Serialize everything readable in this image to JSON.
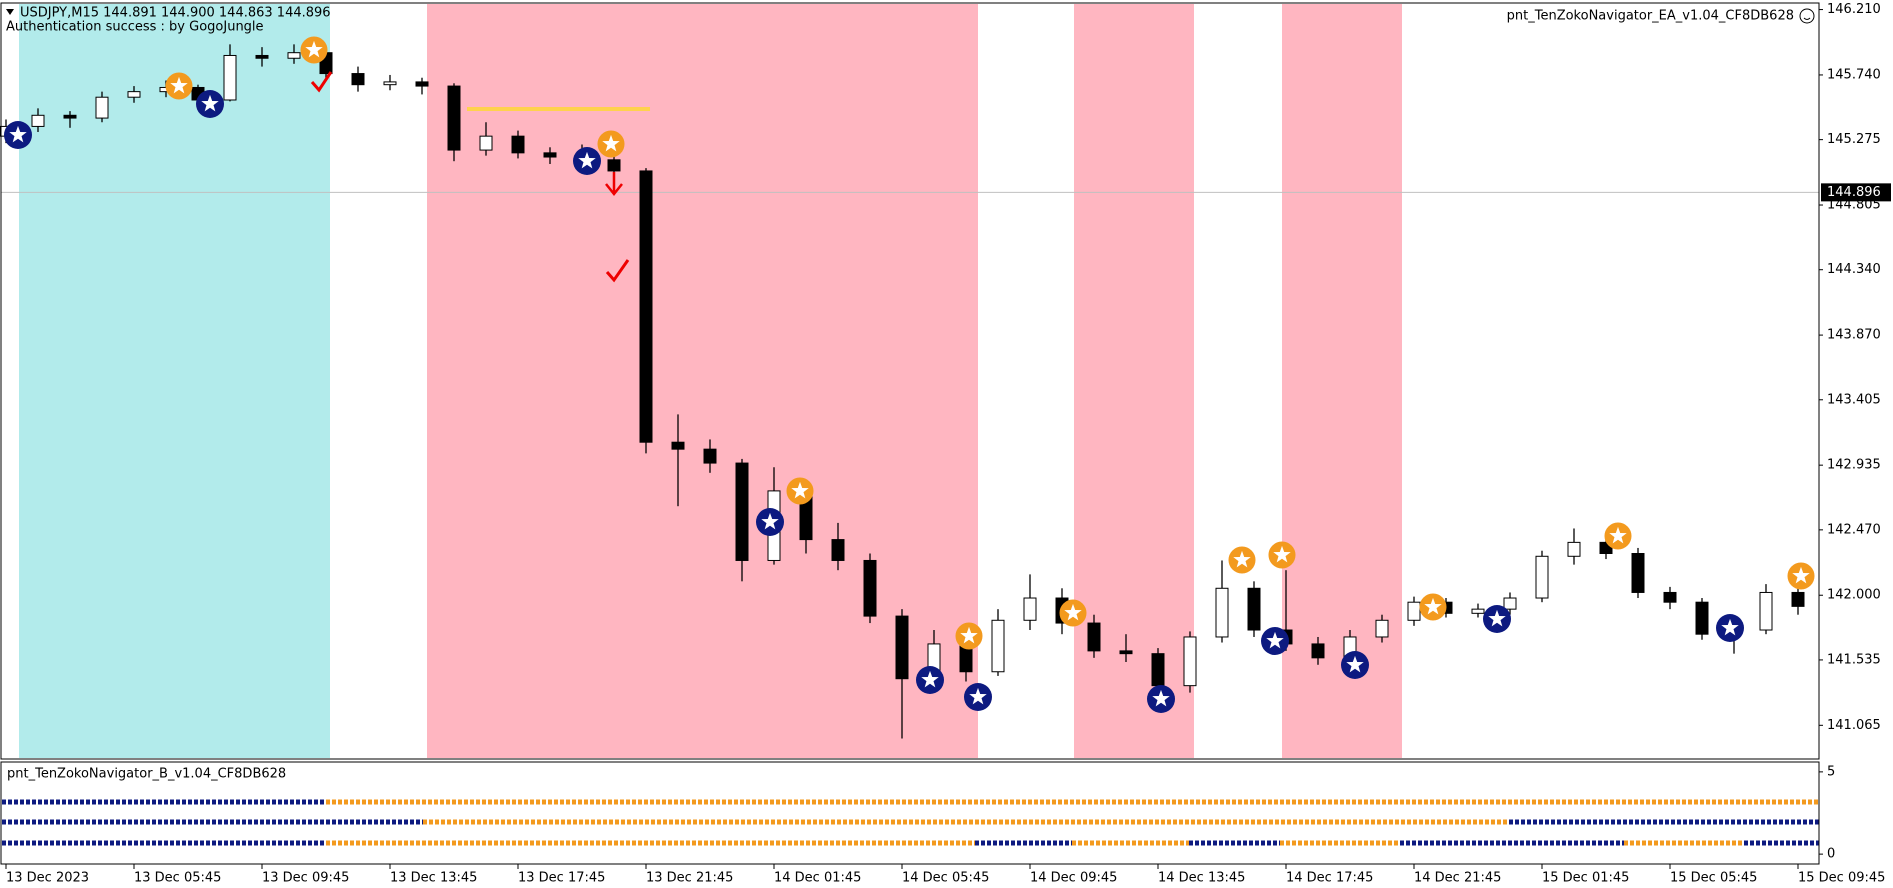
{
  "chart_data": {
    "type": "candlestick",
    "title": "USDJPY,M15  144.891 144.900 144.863 144.896",
    "subtitle": "Authentication success : by GogoJungle",
    "ea_label": "pnt_TenZokoNavigator_EA_v1.04_CF8DB628",
    "current_price": 144.896,
    "ylim": [
      140.83,
      146.25
    ],
    "yticks": [
      {
        "value": 146.21,
        "label": "146.210"
      },
      {
        "value": 145.74,
        "label": "145.740"
      },
      {
        "value": 145.275,
        "label": "145.275"
      },
      {
        "value": 144.805,
        "label": "144.805"
      },
      {
        "value": 144.34,
        "label": "144.340"
      },
      {
        "value": 143.87,
        "label": "143.870"
      },
      {
        "value": 143.405,
        "label": "143.405"
      },
      {
        "value": 142.935,
        "label": "142.935"
      },
      {
        "value": 142.47,
        "label": "142.470"
      },
      {
        "value": 142.0,
        "label": "142.000"
      },
      {
        "value": 141.535,
        "label": "141.535"
      },
      {
        "value": 141.065,
        "label": "141.065"
      }
    ],
    "x_labels": [
      "13 Dec 2023",
      "13 Dec 05:45",
      "13 Dec 09:45",
      "13 Dec 13:45",
      "13 Dec 17:45",
      "13 Dec 21:45",
      "14 Dec 01:45",
      "14 Dec 05:45",
      "14 Dec 09:45",
      "14 Dec 13:45",
      "14 Dec 17:45",
      "14 Dec 21:45",
      "15 Dec 01:45",
      "15 Dec 05:45",
      "15 Dec 09:45"
    ],
    "up_color": "#ffffff",
    "down_color": "#000000",
    "candles": [
      [
        145.3,
        145.42,
        145.25,
        145.37
      ],
      [
        145.37,
        145.5,
        145.33,
        145.45
      ],
      [
        145.45,
        145.48,
        145.36,
        145.43
      ],
      [
        145.43,
        145.62,
        145.4,
        145.58
      ],
      [
        145.58,
        145.66,
        145.54,
        145.62
      ],
      [
        145.62,
        145.7,
        145.58,
        145.65
      ],
      [
        145.65,
        145.67,
        145.52,
        145.56
      ],
      [
        145.56,
        145.96,
        145.55,
        145.88
      ],
      [
        145.88,
        145.94,
        145.8,
        145.86
      ],
      [
        145.86,
        145.96,
        145.82,
        145.9
      ],
      [
        145.9,
        145.92,
        145.7,
        145.75
      ],
      [
        145.75,
        145.8,
        145.62,
        145.67
      ],
      [
        145.67,
        145.74,
        145.63,
        145.69
      ],
      [
        145.69,
        145.72,
        145.6,
        145.66
      ],
      [
        145.66,
        145.68,
        145.12,
        145.2
      ],
      [
        145.2,
        145.4,
        145.16,
        145.3
      ],
      [
        145.3,
        145.34,
        145.14,
        145.18
      ],
      [
        145.18,
        145.22,
        145.1,
        145.15
      ],
      [
        145.15,
        145.24,
        145.07,
        145.13
      ],
      [
        145.13,
        145.27,
        145.03,
        145.05
      ],
      [
        145.05,
        145.07,
        143.02,
        143.1
      ],
      [
        143.1,
        143.3,
        142.64,
        143.05
      ],
      [
        143.05,
        143.12,
        142.88,
        142.95
      ],
      [
        142.95,
        142.98,
        142.1,
        142.25
      ],
      [
        142.25,
        142.92,
        142.22,
        142.75
      ],
      [
        142.75,
        142.8,
        142.3,
        142.4
      ],
      [
        142.4,
        142.52,
        142.18,
        142.25
      ],
      [
        142.25,
        142.3,
        141.8,
        141.85
      ],
      [
        141.85,
        141.9,
        140.97,
        141.4
      ],
      [
        141.4,
        141.75,
        141.3,
        141.65
      ],
      [
        141.65,
        141.8,
        141.38,
        141.45
      ],
      [
        141.45,
        141.9,
        141.42,
        141.82
      ],
      [
        141.82,
        142.15,
        141.75,
        141.98
      ],
      [
        141.98,
        142.05,
        141.72,
        141.8
      ],
      [
        141.8,
        141.86,
        141.55,
        141.6
      ],
      [
        141.6,
        141.72,
        141.52,
        141.58
      ],
      [
        141.58,
        141.62,
        141.28,
        141.35
      ],
      [
        141.35,
        141.74,
        141.3,
        141.7
      ],
      [
        141.7,
        142.25,
        141.66,
        142.05
      ],
      [
        142.05,
        142.1,
        141.7,
        141.75
      ],
      [
        141.75,
        142.18,
        141.6,
        141.65
      ],
      [
        141.65,
        141.7,
        141.5,
        141.55
      ],
      [
        141.55,
        141.75,
        141.48,
        141.7
      ],
      [
        141.7,
        141.86,
        141.66,
        141.82
      ],
      [
        141.82,
        141.99,
        141.78,
        141.95
      ],
      [
        141.95,
        141.98,
        141.84,
        141.87
      ],
      [
        141.87,
        141.94,
        141.84,
        141.9
      ],
      [
        141.9,
        142.02,
        141.86,
        141.98
      ],
      [
        141.98,
        142.32,
        141.95,
        142.28
      ],
      [
        142.28,
        142.48,
        142.22,
        142.38
      ],
      [
        142.38,
        142.45,
        142.26,
        142.3
      ],
      [
        142.3,
        142.34,
        141.98,
        142.02
      ],
      [
        142.02,
        142.06,
        141.9,
        141.95
      ],
      [
        141.95,
        141.98,
        141.68,
        141.72
      ],
      [
        141.72,
        141.8,
        141.58,
        141.75
      ],
      [
        141.75,
        142.08,
        141.72,
        142.02
      ],
      [
        142.02,
        142.08,
        141.86,
        141.92
      ]
    ],
    "indicator": {
      "title": "pnt_TenZokoNavigator_B_v1.04_CF8DB628",
      "ylim": [
        -0.6,
        5.6
      ],
      "yticks": [
        0,
        5
      ]
    }
  }
}
